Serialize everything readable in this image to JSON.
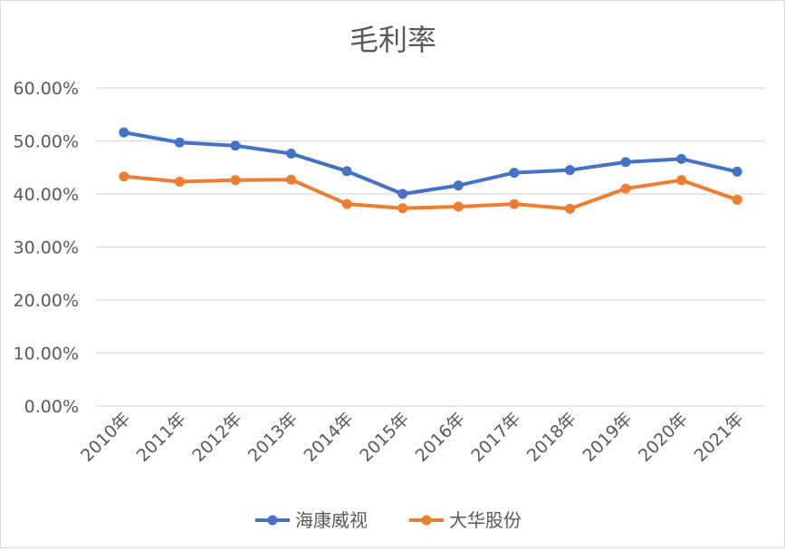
{
  "chart_data": {
    "type": "line",
    "title": "毛利率",
    "categories": [
      "2010年",
      "2011年",
      "2012年",
      "2013年",
      "2014年",
      "2015年",
      "2016年",
      "2017年",
      "2018年",
      "2019年",
      "2020年",
      "2021年"
    ],
    "ylim": [
      0,
      0.6
    ],
    "yticks": [
      "0.00%",
      "10.00%",
      "20.00%",
      "30.00%",
      "40.00%",
      "50.00%",
      "60.00%"
    ],
    "grid": true,
    "legend": "bottom",
    "series": [
      {
        "name": "海康威视",
        "color": "#4472c4",
        "values": [
          0.516,
          0.497,
          0.491,
          0.476,
          0.443,
          0.4,
          0.416,
          0.44,
          0.445,
          0.46,
          0.466,
          0.442
        ]
      },
      {
        "name": "大华股份",
        "color": "#ed7d31",
        "values": [
          0.433,
          0.423,
          0.426,
          0.427,
          0.381,
          0.373,
          0.376,
          0.381,
          0.372,
          0.41,
          0.426,
          0.389
        ]
      }
    ]
  }
}
